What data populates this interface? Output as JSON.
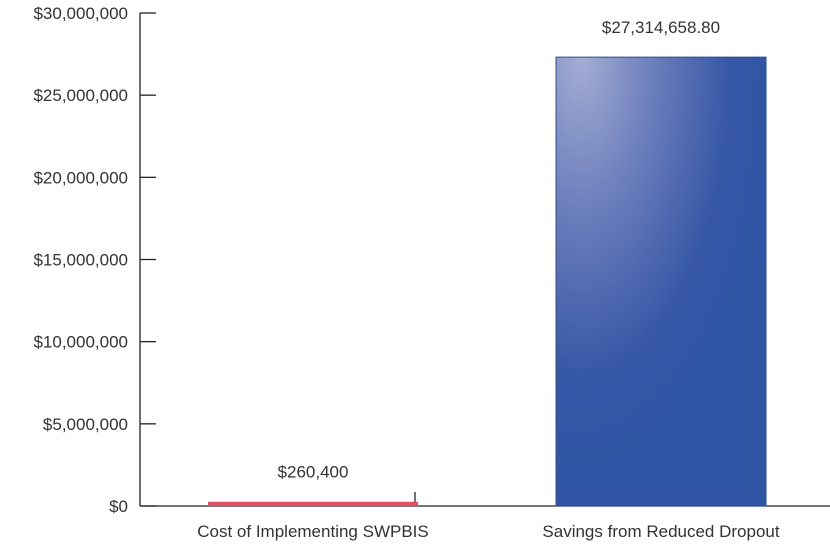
{
  "chart_data": {
    "type": "bar",
    "title": "",
    "xlabel": "",
    "ylabel": "",
    "categories": [
      "Cost of Implementing SWPBIS",
      "Savings from Reduced Dropout"
    ],
    "values": [
      260400,
      27314658.8
    ],
    "data_labels": [
      "$260,400",
      "$27,314,658.80"
    ],
    "bar_colors": [
      "#e05263",
      "#2f55a4"
    ],
    "ylim": [
      0,
      30000000
    ],
    "y_ticks": [
      0,
      5000000,
      10000000,
      15000000,
      20000000,
      25000000,
      30000000
    ],
    "y_tick_labels": [
      "$0",
      "$5,000,000",
      "$10,000,000",
      "$15,000,000",
      "$20,000,000",
      "$25,000,000",
      "$30,000,000"
    ],
    "grid": false,
    "legend": "none"
  }
}
